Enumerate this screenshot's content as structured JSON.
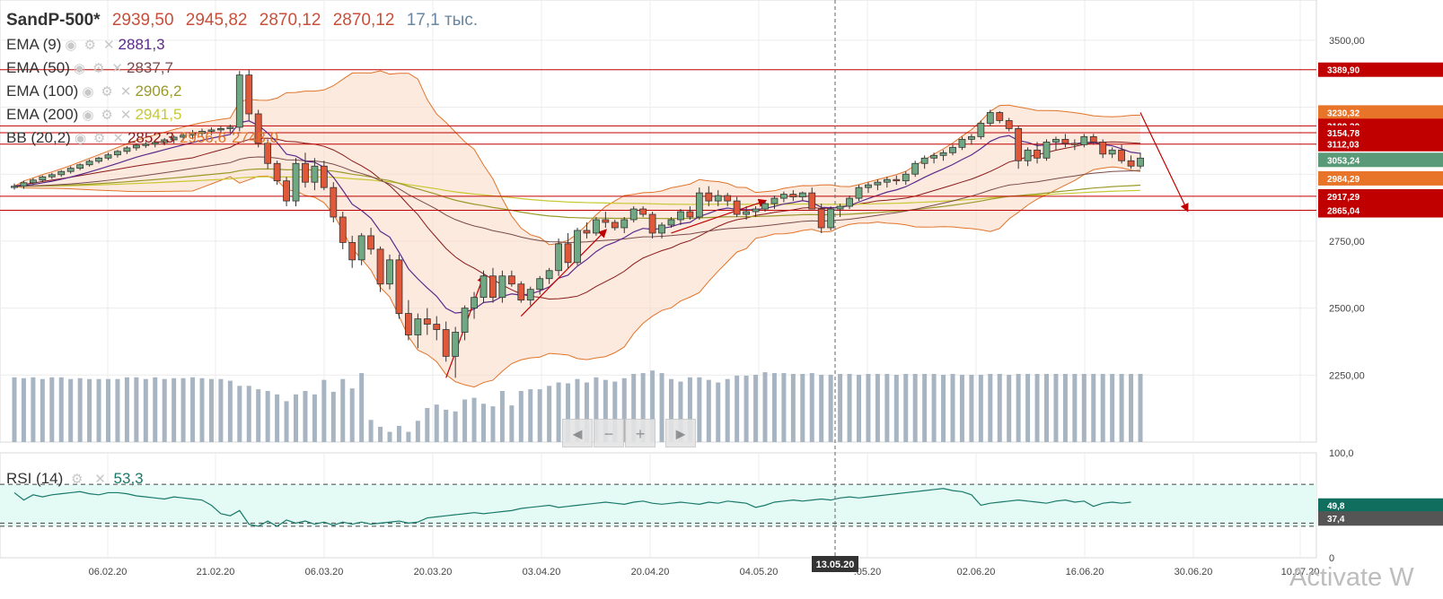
{
  "header": {
    "symbol": "SandP-500*",
    "open": "2939,50",
    "high": "2945,82",
    "low": "2870,12",
    "close": "2870,12",
    "volume": "17,1 тыс."
  },
  "indicators": [
    {
      "label": "EMA (9)",
      "value": "2881,3",
      "color": "#5a2a8a"
    },
    {
      "label": "EMA (50)",
      "value": "2837,7",
      "color": "#7a4a4a"
    },
    {
      "label": "EMA (100)",
      "value": "2906,2",
      "color": "#9a9a2a"
    },
    {
      "label": "EMA (200)",
      "value": "2941,5",
      "color": "#c8c832"
    },
    {
      "label": "BB (20,2)",
      "value": "2852,3",
      "value2": "2956,6",
      "value3": "2748,0",
      "color": "#8a1a1a",
      "color2": "#e0742a",
      "color3": "#e0742a"
    }
  ],
  "rsi": {
    "label": "RSI (14)",
    "value": "53,3",
    "color": "#1a7a6a"
  },
  "x_labels": [
    "06.02.20",
    "21.02.20",
    "06.03.20",
    "20.03.20",
    "03.04.20",
    "20.04.20",
    "04.05.20",
    ".05.20",
    "02.06.20",
    "16.06.20",
    "30.06.20",
    "10.07.20"
  ],
  "crosshair_date": "13.05.20",
  "price_ticks": [
    "3500,00",
    "2750,00",
    "2500,00",
    "2250,00"
  ],
  "rsi_ticks": [
    "100,0",
    "0"
  ],
  "price_tags": [
    {
      "text": "3389,90",
      "color": "#c00000",
      "value": 3389.9
    },
    {
      "text": "3230,32",
      "color": "#e8742a",
      "value": 3230.32
    },
    {
      "text": "3180,30",
      "color": "#c00000",
      "value": 3180.3
    },
    {
      "text": "3154,78",
      "color": "#c00000",
      "value": 3154.78
    },
    {
      "text": "3112,03",
      "color": "#c00000",
      "value": 3112.03
    },
    {
      "text": "3053,24",
      "color": "#5a9a78",
      "value": 3053.24
    },
    {
      "text": "2984,29",
      "color": "#e8742a",
      "value": 2984.29
    },
    {
      "text": "2917,29",
      "color": "#c00000",
      "value": 2917.29
    },
    {
      "text": "2865,04",
      "color": "#c00000",
      "value": 2865.04
    }
  ],
  "rsi_tags": [
    {
      "text": "49,8",
      "color": "#0f6e5e",
      "value": 49.8
    },
    {
      "text": "37,4",
      "color": "#555555",
      "value": 37.4
    }
  ],
  "nav_buttons": [
    "◄",
    "−",
    "+",
    "►"
  ],
  "watermark": "Activate W",
  "chart_data": {
    "type": "candlestick",
    "y_range": [
      2000,
      3650
    ],
    "rsi_range": [
      0,
      100
    ],
    "rsi_levels": [
      70,
      30
    ],
    "candles": [
      [
        2950,
        2965,
        2942,
        2955
      ],
      [
        2955,
        2975,
        2945,
        2968
      ],
      [
        2968,
        2985,
        2960,
        2978
      ],
      [
        2978,
        2995,
        2970,
        2990
      ],
      [
        2990,
        3005,
        2982,
        2998
      ],
      [
        2998,
        3015,
        2990,
        3010
      ],
      [
        3010,
        3030,
        3002,
        3022
      ],
      [
        3022,
        3040,
        3015,
        3035
      ],
      [
        3035,
        3055,
        3028,
        3048
      ],
      [
        3048,
        3065,
        3040,
        3060
      ],
      [
        3060,
        3080,
        3052,
        3072
      ],
      [
        3072,
        3090,
        3062,
        3085
      ],
      [
        3085,
        3105,
        3075,
        3098
      ],
      [
        3098,
        3115,
        3088,
        3108
      ],
      [
        3108,
        3120,
        3098,
        3112
      ],
      [
        3112,
        3128,
        3100,
        3118
      ],
      [
        3118,
        3135,
        3108,
        3128
      ],
      [
        3128,
        3145,
        3115,
        3138
      ],
      [
        3138,
        3155,
        3125,
        3145
      ],
      [
        3145,
        3165,
        3130,
        3152
      ],
      [
        3152,
        3170,
        3138,
        3160
      ],
      [
        3160,
        3175,
        3145,
        3165
      ],
      [
        3165,
        3180,
        3150,
        3170
      ],
      [
        3170,
        3185,
        3155,
        3175
      ],
      [
        3175,
        3385,
        3160,
        3370
      ],
      [
        3370,
        3390,
        3200,
        3225
      ],
      [
        3225,
        3240,
        3100,
        3115
      ],
      [
        3115,
        3130,
        3020,
        3040
      ],
      [
        3040,
        3050,
        2960,
        2975
      ],
      [
        2975,
        2990,
        2880,
        2900
      ],
      [
        2900,
        3060,
        2880,
        3040
      ],
      [
        3040,
        3080,
        2950,
        2970
      ],
      [
        2970,
        3060,
        2940,
        3030
      ],
      [
        3030,
        3050,
        2940,
        2950
      ],
      [
        2950,
        2970,
        2820,
        2840
      ],
      [
        2840,
        2860,
        2720,
        2745
      ],
      [
        2745,
        2770,
        2650,
        2680
      ],
      [
        2680,
        2780,
        2660,
        2770
      ],
      [
        2770,
        2800,
        2700,
        2720
      ],
      [
        2720,
        2730,
        2560,
        2590
      ],
      [
        2590,
        2700,
        2570,
        2680
      ],
      [
        2680,
        2700,
        2460,
        2480
      ],
      [
        2480,
        2530,
        2380,
        2400
      ],
      [
        2400,
        2480,
        2350,
        2460
      ],
      [
        2460,
        2500,
        2400,
        2440
      ],
      [
        2440,
        2470,
        2380,
        2420
      ],
      [
        2420,
        2450,
        2300,
        2320
      ],
      [
        2320,
        2430,
        2240,
        2410
      ],
      [
        2410,
        2510,
        2380,
        2500
      ],
      [
        2500,
        2560,
        2460,
        2540
      ],
      [
        2540,
        2640,
        2520,
        2620
      ],
      [
        2620,
        2650,
        2520,
        2540
      ],
      [
        2540,
        2640,
        2520,
        2620
      ],
      [
        2620,
        2640,
        2580,
        2590
      ],
      [
        2590,
        2600,
        2520,
        2530
      ],
      [
        2530,
        2580,
        2510,
        2570
      ],
      [
        2570,
        2620,
        2550,
        2610
      ],
      [
        2610,
        2650,
        2590,
        2640
      ],
      [
        2640,
        2760,
        2620,
        2740
      ],
      [
        2740,
        2780,
        2650,
        2670
      ],
      [
        2670,
        2800,
        2660,
        2790
      ],
      [
        2790,
        2820,
        2760,
        2780
      ],
      [
        2780,
        2840,
        2770,
        2830
      ],
      [
        2830,
        2860,
        2800,
        2820
      ],
      [
        2820,
        2830,
        2790,
        2800
      ],
      [
        2800,
        2840,
        2780,
        2830
      ],
      [
        2830,
        2880,
        2820,
        2870
      ],
      [
        2870,
        2880,
        2840,
        2850
      ],
      [
        2850,
        2860,
        2760,
        2780
      ],
      [
        2780,
        2820,
        2760,
        2810
      ],
      [
        2810,
        2840,
        2800,
        2830
      ],
      [
        2830,
        2870,
        2810,
        2860
      ],
      [
        2860,
        2880,
        2830,
        2840
      ],
      [
        2840,
        2950,
        2830,
        2930
      ],
      [
        2930,
        2955,
        2880,
        2900
      ],
      [
        2900,
        2940,
        2880,
        2920
      ],
      [
        2920,
        2930,
        2880,
        2900
      ],
      [
        2900,
        2915,
        2840,
        2850
      ],
      [
        2850,
        2880,
        2830,
        2860
      ],
      [
        2860,
        2880,
        2840,
        2870
      ],
      [
        2870,
        2900,
        2860,
        2890
      ],
      [
        2890,
        2920,
        2870,
        2910
      ],
      [
        2910,
        2935,
        2895,
        2925
      ],
      [
        2925,
        2940,
        2900,
        2915
      ],
      [
        2915,
        2935,
        2900,
        2930
      ],
      [
        2930,
        2950,
        2880,
        2870
      ],
      [
        2870,
        2890,
        2780,
        2800
      ],
      [
        2800,
        2880,
        2790,
        2870
      ],
      [
        2870,
        2890,
        2840,
        2880
      ],
      [
        2880,
        2920,
        2870,
        2910
      ],
      [
        2910,
        2960,
        2900,
        2950
      ],
      [
        2950,
        2970,
        2930,
        2960
      ],
      [
        2960,
        2980,
        2940,
        2970
      ],
      [
        2970,
        2990,
        2950,
        2980
      ],
      [
        2980,
        2995,
        2960,
        2975
      ],
      [
        2975,
        3010,
        2960,
        3000
      ],
      [
        3000,
        3050,
        2990,
        3040
      ],
      [
        3040,
        3070,
        3020,
        3060
      ],
      [
        3060,
        3080,
        3040,
        3070
      ],
      [
        3070,
        3090,
        3050,
        3080
      ],
      [
        3080,
        3110,
        3070,
        3100
      ],
      [
        3100,
        3140,
        3090,
        3130
      ],
      [
        3130,
        3150,
        3110,
        3140
      ],
      [
        3140,
        3200,
        3130,
        3190
      ],
      [
        3190,
        3240,
        3180,
        3230
      ],
      [
        3230,
        3235,
        3190,
        3200
      ],
      [
        3200,
        3210,
        3160,
        3170
      ],
      [
        3170,
        3180,
        3020,
        3050
      ],
      [
        3050,
        3100,
        3030,
        3090
      ],
      [
        3090,
        3120,
        3040,
        3060
      ],
      [
        3060,
        3130,
        3050,
        3120
      ],
      [
        3120,
        3140,
        3090,
        3130
      ],
      [
        3130,
        3150,
        3100,
        3115
      ],
      [
        3115,
        3130,
        3090,
        3110
      ],
      [
        3110,
        3150,
        3100,
        3140
      ],
      [
        3140,
        3150,
        3110,
        3120
      ],
      [
        3120,
        3130,
        3060,
        3075
      ],
      [
        3075,
        3100,
        3060,
        3090
      ],
      [
        3090,
        3110,
        3040,
        3050
      ],
      [
        3050,
        3070,
        3020,
        3030
      ],
      [
        3030,
        3080,
        3020,
        3060
      ]
    ],
    "volume": [
      0.76,
      0.75,
      0.76,
      0.74,
      0.76,
      0.76,
      0.74,
      0.75,
      0.74,
      0.74,
      0.74,
      0.74,
      0.76,
      0.76,
      0.74,
      0.76,
      0.74,
      0.75,
      0.75,
      0.76,
      0.75,
      0.74,
      0.74,
      0.72,
      0.66,
      0.66,
      0.62,
      0.6,
      0.56,
      0.48,
      0.56,
      0.6,
      0.56,
      0.73,
      0.59,
      0.74,
      0.63,
      0.81,
      0.26,
      0.18,
      0.12,
      0.19,
      0.12,
      0.25,
      0.4,
      0.44,
      0.38,
      0.36,
      0.5,
      0.52,
      0.45,
      0.42,
      0.6,
      0.43,
      0.6,
      0.62,
      0.62,
      0.66,
      0.7,
      0.69,
      0.74,
      0.7,
      0.76,
      0.73,
      0.71,
      0.75,
      0.8,
      0.81,
      0.84,
      0.81,
      0.74,
      0.71,
      0.76,
      0.76,
      0.73,
      0.7,
      0.74,
      0.78,
      0.78,
      0.79,
      0.82,
      0.81,
      0.81,
      0.8,
      0.8,
      0.81,
      0.79,
      0.79,
      0.8,
      0.8,
      0.79,
      0.8,
      0.8,
      0.8,
      0.79,
      0.8,
      0.8,
      0.8,
      0.8,
      0.79,
      0.8,
      0.79,
      0.79,
      0.79,
      0.8,
      0.8,
      0.79,
      0.8,
      0.8,
      0.8,
      0.8,
      0.8,
      0.8,
      0.8,
      0.8,
      0.8,
      0.8,
      0.8,
      0.8,
      0.8,
      0.8,
      0.8,
      0.81,
      0.8,
      0.8
    ],
    "rsi": [
      62,
      55,
      60,
      58,
      60,
      61,
      62,
      63,
      61,
      60,
      62,
      62,
      61,
      59,
      58,
      57,
      56,
      58,
      57,
      56,
      55,
      50,
      42,
      40,
      45,
      32,
      30,
      35,
      30,
      36,
      33,
      35,
      32,
      34,
      31,
      34,
      32,
      34,
      32,
      33,
      34,
      35,
      33,
      34,
      38,
      39,
      40,
      41,
      42,
      43,
      42,
      43,
      44,
      45,
      47,
      48,
      49,
      50,
      48,
      49,
      50,
      51,
      52,
      53,
      52,
      51,
      53,
      54,
      52,
      51,
      52,
      53,
      52,
      51,
      53,
      52,
      54,
      53,
      52,
      48,
      50,
      53,
      54,
      55,
      54,
      55,
      56,
      55,
      57,
      58,
      57,
      58,
      59,
      60,
      61,
      62,
      63,
      64,
      65,
      66,
      64,
      63,
      60,
      50,
      52,
      53,
      54,
      55,
      54,
      53,
      52,
      54,
      55,
      53,
      54,
      49,
      52,
      53,
      52,
      53
    ],
    "annotations": {
      "horizontal_lines": [
        3389.9,
        3180.3,
        3154.78,
        3112.03,
        2917.29,
        2865.04
      ],
      "trend_lines": [
        [
          [
            120,
            3230
          ],
          [
            125,
            2865
          ]
        ],
        [
          [
            46,
            2240
          ],
          [
            50,
            2620
          ]
        ],
        [
          [
            54,
            2470
          ],
          [
            63,
            2790
          ]
        ],
        [
          [
            70,
            2780
          ],
          [
            80,
            2900
          ]
        ]
      ]
    }
  }
}
